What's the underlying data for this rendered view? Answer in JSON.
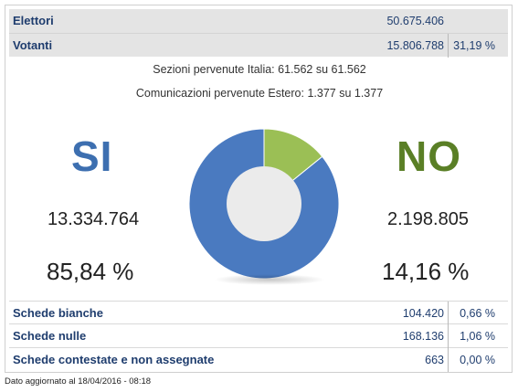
{
  "summary": {
    "elettori": {
      "label": "Elettori",
      "value": "50.675.406"
    },
    "votanti": {
      "label": "Votanti",
      "value": "15.806.788",
      "percent": "31,19 %"
    }
  },
  "sezioni_text": "Sezioni pervenute Italia: 61.562 su 61.562",
  "estero_text": "Comunicazioni pervenute Estero: 1.377 su 1.377",
  "results": {
    "si": {
      "label": "SI",
      "votes": "13.334.764",
      "percent": "85,84 %",
      "color": "#4a7ac0"
    },
    "no": {
      "label": "NO",
      "votes": "2.198.805",
      "percent": "14,16 %",
      "color": "#9bbf55"
    }
  },
  "chart_data": {
    "type": "pie",
    "categories": [
      "SI",
      "NO"
    ],
    "values": [
      85.84,
      14.16
    ]
  },
  "schede": [
    {
      "label": "Schede bianche",
      "value": "104.420",
      "percent": "0,66 %"
    },
    {
      "label": "Schede nulle",
      "value": "168.136",
      "percent": "1,06 %"
    },
    {
      "label": "Schede contestate e non assegnate",
      "value": "663",
      "percent": "0,00 %"
    }
  ],
  "footer": "Dato aggiornato al 18/04/2016 - 08:18"
}
